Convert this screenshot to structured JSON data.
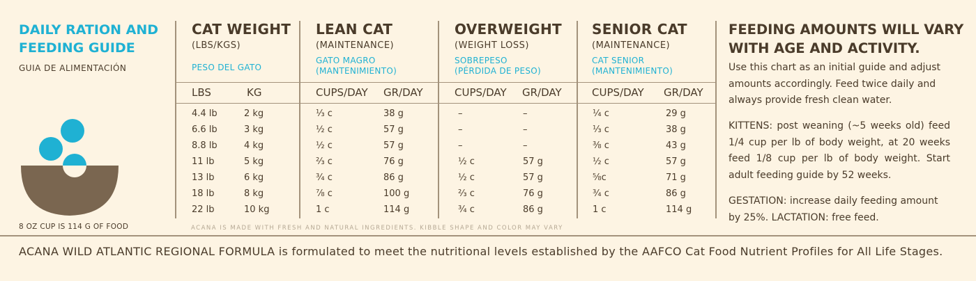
{
  "guide": {
    "title_line1": "DAILY RATION AND",
    "title_line2": "FEEDING GUIDE",
    "subtitle": "GUIA DE ALIMENTACIÓN",
    "cup_note": "8 OZ CUP IS 114 G OF FOOD"
  },
  "columns": {
    "weight": {
      "title": "CAT WEIGHT",
      "sub": "(LBS/KGS)",
      "es1": "PESO DEL GATO",
      "h1": "LBS",
      "h2": "KG"
    },
    "lean": {
      "title": "LEAN CAT",
      "sub": "(MAINTENANCE)",
      "es1": "GATO MAGRO",
      "es2": "(MANTENIMIENTO)",
      "h1": "CUPS/DAY",
      "h2": "GR/DAY"
    },
    "over": {
      "title": "OVERWEIGHT",
      "sub": "(WEIGHT LOSS)",
      "es1": "SOBREPESO",
      "es2": "(PÉRDIDA DE PESO)",
      "h1": "CUPS/DAY",
      "h2": "GR/DAY"
    },
    "senior": {
      "title": "SENIOR CAT",
      "sub": "(MAINTENANCE)",
      "es1": "CAT SENIOR",
      "es2": "(MANTENIMIENTO)",
      "h1": "CUPS/DAY",
      "h2": "GR/DAY"
    }
  },
  "rows": [
    [
      "4.4 lb",
      "2 kg",
      "⅓ c",
      "38 g",
      "–",
      "–",
      "¼ c",
      "29 g"
    ],
    [
      "6.6 lb",
      "3 kg",
      "½ c",
      "57 g",
      "–",
      "–",
      "⅓ c",
      "38 g"
    ],
    [
      "8.8 lb",
      "4 kg",
      "½ c",
      "57 g",
      "–",
      "–",
      "⅜ c",
      "43 g"
    ],
    [
      "11 lb",
      "5 kg",
      "⅔ c",
      "76 g",
      "½ c",
      "57 g",
      "½ c",
      "57 g"
    ],
    [
      "13 lb",
      "6 kg",
      "¾ c",
      "86 g",
      "½ c",
      "57 g",
      "⅝c",
      "71 g"
    ],
    [
      "18 lb",
      "8 kg",
      "⅞ c",
      "100 g",
      "⅔ c",
      "76 g",
      "¾ c",
      "86 g"
    ],
    [
      "22 lb",
      "10 kg",
      "1 c",
      "114 g",
      "¾ c",
      "86 g",
      "1 c",
      "114 g"
    ]
  ],
  "fine_print": "ACANA IS MADE WITH FRESH AND NATURAL INGREDIENTS. KIBBLE SHAPE AND COLOR MAY VARY",
  "right": {
    "heading_line1": "FEEDING AMOUNTS WILL VARY",
    "heading_line2": "WITH AGE AND ACTIVITY.",
    "p1": "Use this chart as an initial guide and adjust amounts accordingly. Feed twice daily and always provide fresh clean water.",
    "p2": "KITTENS: post weaning (~5 weeks old) feed 1/4 cup per lb of body weight, at 20 weeks feed 1/8 cup per lb of body weight. Start adult feeding guide by 52 weeks.",
    "p3": "GESTATION: increase daily feeding amount by 25%. LACTATION: free feed."
  },
  "bottom_note": "ACANA WILD ATLANTIC REGIONAL FORMULA is formulated to meet the nutritional levels established by the AAFCO Cat Food Nutrient Profiles for All Life Stages.",
  "colors": {
    "accent": "#1fb1d3",
    "text": "#4a3b2a",
    "bowl": "#7a6650",
    "rule": "#a3927b",
    "background": "#fdf4e3"
  },
  "icons": {
    "bowl": "food-bowl-icon"
  }
}
